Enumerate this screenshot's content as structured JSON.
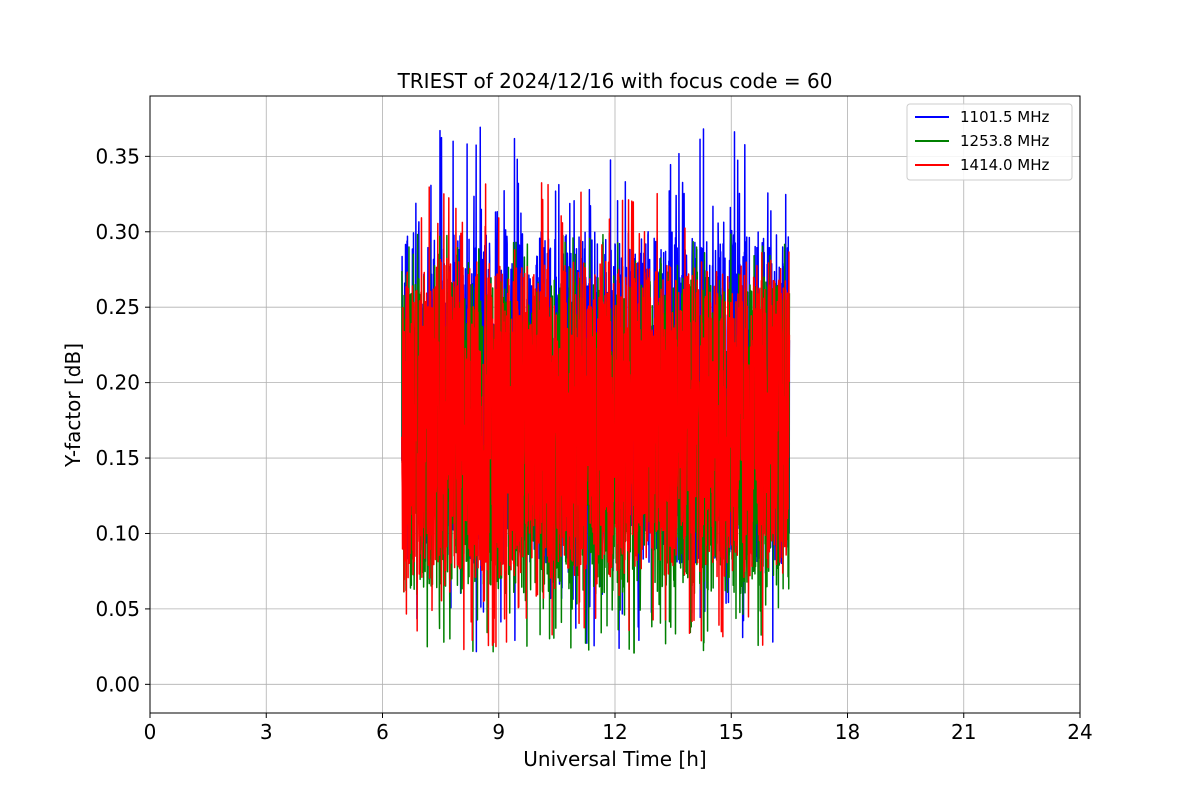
{
  "chart_data": {
    "type": "line",
    "title": "TRIEST of 2024/12/16 with focus code = 60",
    "xlabel": "Universal Time [h]",
    "ylabel": "Y-factor [dB]",
    "xlim": [
      0,
      24
    ],
    "ylim": [
      -0.019,
      0.39
    ],
    "xticks": [
      0,
      3,
      6,
      9,
      12,
      15,
      18,
      21,
      24
    ],
    "yticks": [
      0.0,
      0.05,
      0.1,
      0.15,
      0.2,
      0.25,
      0.3,
      0.35
    ],
    "ytick_labels": [
      "0.00",
      "0.05",
      "0.10",
      "0.15",
      "0.20",
      "0.25",
      "0.30",
      "0.35"
    ],
    "grid": true,
    "legend_position": "top-right",
    "time_range_hours": [
      6.5,
      16.5
    ],
    "series": [
      {
        "name": "1101.5 MHz",
        "color": "#0000ff",
        "observed_min": 0.0,
        "observed_max": 0.371,
        "typical_range": [
          0.08,
          0.3
        ]
      },
      {
        "name": "1253.8 MHz",
        "color": "#008000",
        "observed_min": 0.0,
        "observed_max": 0.3,
        "typical_range": [
          0.06,
          0.27
        ]
      },
      {
        "name": "1414.0 MHz",
        "color": "#ff0000",
        "observed_min": 0.0,
        "observed_max": 0.333,
        "typical_range": [
          0.07,
          0.28
        ]
      }
    ]
  }
}
